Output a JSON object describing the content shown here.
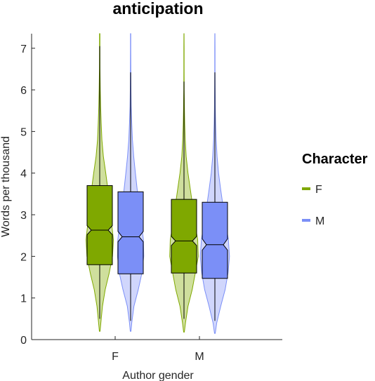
{
  "chart_data": {
    "type": "violin-box",
    "title": "anticipation",
    "xlabel": "Author gender",
    "ylabel": "Words per thousand",
    "categories": [
      "F",
      "M"
    ],
    "ylim": [
      0,
      7.35
    ],
    "yticks": [
      0,
      1,
      2,
      3,
      4,
      5,
      6,
      7
    ],
    "grid": false,
    "legend": {
      "title": "Character",
      "position": "right",
      "entries": [
        "F",
        "M"
      ]
    },
    "series": [
      {
        "name": "F",
        "color": "#7fa800",
        "fill": "#c7d98c",
        "stats": [
          {
            "category": "F",
            "whisker_low": 0.5,
            "q1": 1.8,
            "median": 2.63,
            "q3": 3.7,
            "whisker_high": 7.05,
            "notch": [
              2.52,
              2.74
            ],
            "min": 0.22,
            "max": 7.35
          },
          {
            "category": "M",
            "whisker_low": 0.5,
            "q1": 1.6,
            "median": 2.37,
            "q3": 3.37,
            "whisker_high": 6.2,
            "notch": [
              2.26,
              2.48
            ],
            "min": 0.18,
            "max": 7.35
          }
        ]
      },
      {
        "name": "M",
        "color": "#7b8ff7",
        "fill": "#c8cffb",
        "stats": [
          {
            "category": "F",
            "whisker_low": 0.45,
            "q1": 1.58,
            "median": 2.47,
            "q3": 3.55,
            "whisker_high": 6.42,
            "notch": [
              2.35,
              2.6
            ],
            "min": 0.2,
            "max": 7.35
          },
          {
            "category": "M",
            "whisker_low": 0.45,
            "q1": 1.47,
            "median": 2.28,
            "q3": 3.3,
            "whisker_high": 6.42,
            "notch": [
              2.15,
              2.42
            ],
            "min": 0.15,
            "max": 7.35
          }
        ]
      }
    ],
    "density_profiles": [
      [
        [
          0.2,
          0.02
        ],
        [
          0.4,
          0.06
        ],
        [
          0.8,
          0.15
        ],
        [
          1.2,
          0.3
        ],
        [
          1.6,
          0.52
        ],
        [
          2.0,
          0.7
        ],
        [
          2.4,
          0.75
        ],
        [
          2.8,
          0.65
        ],
        [
          3.2,
          0.55
        ],
        [
          3.6,
          0.45
        ],
        [
          4.0,
          0.33
        ],
        [
          4.4,
          0.2
        ],
        [
          4.8,
          0.12
        ],
        [
          5.2,
          0.08
        ],
        [
          5.6,
          0.05
        ],
        [
          6.0,
          0.03
        ],
        [
          6.5,
          0.015
        ],
        [
          7.0,
          0.01
        ],
        [
          7.35,
          0.01
        ]
      ],
      [
        [
          0.2,
          0.02
        ],
        [
          0.4,
          0.06
        ],
        [
          0.8,
          0.18
        ],
        [
          1.2,
          0.42
        ],
        [
          1.6,
          0.62
        ],
        [
          2.0,
          0.72
        ],
        [
          2.4,
          0.7
        ],
        [
          2.8,
          0.6
        ],
        [
          3.2,
          0.48
        ],
        [
          3.6,
          0.36
        ],
        [
          4.0,
          0.26
        ],
        [
          4.4,
          0.17
        ],
        [
          4.8,
          0.1
        ],
        [
          5.2,
          0.06
        ],
        [
          5.6,
          0.03
        ],
        [
          6.0,
          0.02
        ],
        [
          6.5,
          0.01
        ],
        [
          7.0,
          0.008
        ],
        [
          7.35,
          0.006
        ]
      ],
      [
        [
          0.18,
          0.02
        ],
        [
          0.4,
          0.08
        ],
        [
          0.8,
          0.22
        ],
        [
          1.2,
          0.45
        ],
        [
          1.6,
          0.62
        ],
        [
          2.0,
          0.78
        ],
        [
          2.4,
          0.75
        ],
        [
          2.8,
          0.6
        ],
        [
          3.2,
          0.48
        ],
        [
          3.6,
          0.35
        ],
        [
          4.0,
          0.22
        ],
        [
          4.4,
          0.12
        ],
        [
          4.8,
          0.07
        ],
        [
          5.2,
          0.04
        ],
        [
          5.6,
          0.025
        ],
        [
          6.0,
          0.012
        ],
        [
          6.5,
          0.008
        ],
        [
          7.0,
          0.006
        ],
        [
          7.35,
          0.005
        ]
      ],
      [
        [
          0.15,
          0.02
        ],
        [
          0.4,
          0.1
        ],
        [
          0.8,
          0.32
        ],
        [
          1.2,
          0.56
        ],
        [
          1.6,
          0.72
        ],
        [
          2.0,
          0.8
        ],
        [
          2.4,
          0.74
        ],
        [
          2.8,
          0.6
        ],
        [
          3.2,
          0.45
        ],
        [
          3.6,
          0.32
        ],
        [
          4.0,
          0.2
        ],
        [
          4.4,
          0.12
        ],
        [
          4.8,
          0.07
        ],
        [
          5.2,
          0.04
        ],
        [
          5.6,
          0.025
        ],
        [
          6.0,
          0.015
        ],
        [
          6.5,
          0.008
        ],
        [
          7.0,
          0.006
        ],
        [
          7.35,
          0.005
        ]
      ]
    ]
  }
}
